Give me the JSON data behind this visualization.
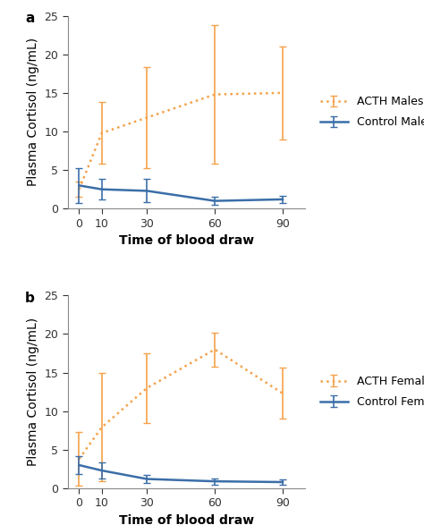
{
  "x": [
    0,
    10,
    30,
    60,
    90
  ],
  "panel_a": {
    "label": "a",
    "acth_y": [
      2.5,
      9.8,
      11.8,
      14.8,
      15.0
    ],
    "acth_yerr": [
      1.0,
      4.0,
      6.5,
      9.0,
      6.0
    ],
    "control_y": [
      3.0,
      2.5,
      2.3,
      1.0,
      1.2
    ],
    "control_yerr": [
      2.3,
      1.3,
      1.5,
      0.5,
      0.5
    ],
    "acth_label": "ACTH Males",
    "control_label": "Control Males"
  },
  "panel_b": {
    "label": "b",
    "acth_y": [
      3.8,
      7.9,
      13.0,
      18.0,
      12.3
    ],
    "acth_yerr": [
      3.5,
      7.0,
      4.5,
      2.2,
      3.3
    ],
    "control_y": [
      3.0,
      2.3,
      1.2,
      0.9,
      0.8
    ],
    "control_yerr": [
      1.2,
      1.0,
      0.5,
      0.4,
      0.3
    ],
    "acth_label": "ACTH Females",
    "control_label": "Control Females"
  },
  "xlabel": "Time of blood draw",
  "ylabel": "Plasma Cortisol (ng/mL)",
  "ylim": [
    0,
    25
  ],
  "yticks": [
    0,
    5,
    10,
    15,
    20,
    25
  ],
  "acth_color": "#F5A24B",
  "control_color": "#3B6EA8",
  "background_color": "#ffffff",
  "fontsize_label": 10,
  "fontsize_tick": 9,
  "fontsize_panel": 11
}
